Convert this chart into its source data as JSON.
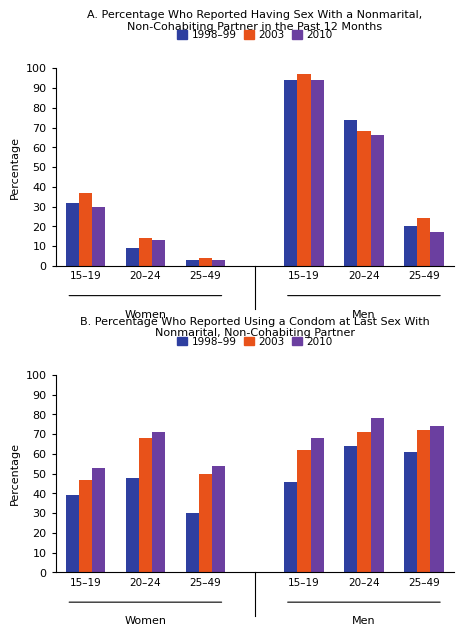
{
  "chart_A": {
    "title": "A. Percentage Who Reported Having Sex With a Nonmarital,\nNon-Cohabiting Partner in the Past 12 Months",
    "groups": [
      "15–19",
      "20–24",
      "25–49",
      "15–19",
      "20–24",
      "25–49"
    ],
    "series": {
      "1998–99": [
        32,
        9,
        3,
        94,
        74,
        20
      ],
      "2003": [
        37,
        14,
        4,
        97,
        68,
        24
      ],
      "2010": [
        30,
        13,
        3,
        94,
        66,
        17
      ]
    },
    "ylim": [
      0,
      100
    ],
    "yticks": [
      0,
      10,
      20,
      30,
      40,
      50,
      60,
      70,
      80,
      90,
      100
    ]
  },
  "chart_B": {
    "title": "B. Percentage Who Reported Using a Condom at Last Sex With\nNonmarital, Non-Cohabiting Partner",
    "groups": [
      "15–19",
      "20–24",
      "25–49",
      "15–19",
      "20–24",
      "25–49"
    ],
    "series": {
      "1998–99": [
        39,
        48,
        30,
        46,
        64,
        61
      ],
      "2003": [
        47,
        68,
        50,
        62,
        71,
        72
      ],
      "2010": [
        53,
        71,
        54,
        68,
        78,
        74
      ]
    },
    "ylim": [
      0,
      100
    ],
    "yticks": [
      0,
      10,
      20,
      30,
      40,
      50,
      60,
      70,
      80,
      90,
      100
    ]
  },
  "colors": {
    "1998–99": "#2E3FA0",
    "2003": "#E8521A",
    "2010": "#6B3FA0"
  },
  "legend_labels": [
    "1998–99",
    "2003",
    "2010"
  ],
  "ylabel": "Percentage",
  "background_color": "#ffffff",
  "group_section_labels": [
    "Women",
    "Men"
  ]
}
